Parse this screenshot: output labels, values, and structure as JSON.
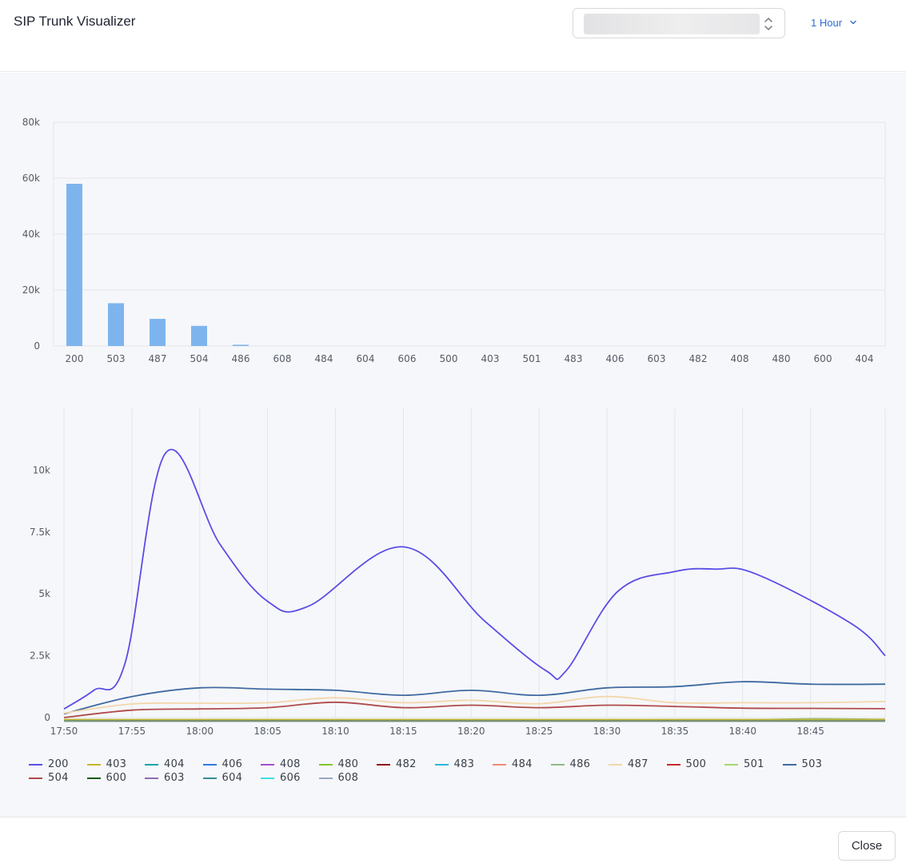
{
  "header": {
    "title": "SIP Trunk Visualizer",
    "range_label": "1 Hour"
  },
  "footer": {
    "close_label": "Close"
  },
  "chart_data": [
    {
      "type": "bar",
      "categories": [
        "200",
        "503",
        "487",
        "504",
        "486",
        "608",
        "484",
        "604",
        "606",
        "500",
        "403",
        "501",
        "483",
        "406",
        "603",
        "482",
        "408",
        "480",
        "600",
        "404"
      ],
      "values": [
        58000,
        15300,
        9700,
        7200,
        450,
        0,
        0,
        0,
        0,
        0,
        0,
        0,
        0,
        0,
        0,
        0,
        0,
        0,
        0,
        0
      ],
      "ylim": [
        0,
        80000
      ],
      "yticks": [
        0,
        20000,
        40000,
        60000,
        80000
      ],
      "ytick_labels": [
        "0",
        "20k",
        "40k",
        "60k",
        "80k"
      ],
      "bar_color": "#7eb4ee",
      "grid": true
    },
    {
      "type": "line",
      "x": [
        "17:50",
        "17:55",
        "18:00",
        "18:05",
        "18:10",
        "18:15",
        "18:20",
        "18:25",
        "18:30",
        "18:35",
        "18:40",
        "18:45"
      ],
      "xticks": [
        "17:50",
        "17:55",
        "18:00",
        "18:05",
        "18:10",
        "18:15",
        "18:20",
        "18:25",
        "18:30",
        "18:35",
        "18:40",
        "18:45"
      ],
      "ylim": [
        0,
        12500
      ],
      "yticks": [
        0,
        2500,
        5000,
        7500,
        10000
      ],
      "ytick_labels": [
        "0",
        "2.5k",
        "5k",
        "7.5k",
        "10k"
      ],
      "grid": true,
      "legend": "bottom-left",
      "series": [
        {
          "name": "200",
          "color": "#5a4de6",
          "values": [
            [
              0,
              350
            ],
            [
              2.2,
              1100
            ],
            [
              4.5,
              2200
            ],
            [
              7.5,
              10700
            ],
            [
              11.5,
              7000
            ],
            [
              15,
              4700
            ],
            [
              18,
              4500
            ],
            [
              25,
              6900
            ],
            [
              31,
              3900
            ],
            [
              35.5,
              1900
            ],
            [
              37,
              1900
            ],
            [
              40.8,
              5100
            ],
            [
              45,
              5900
            ],
            [
              48,
              6000
            ],
            [
              51,
              5800
            ],
            [
              58,
              3800
            ],
            [
              60.5,
              2500
            ]
          ]
        },
        {
          "name": "403",
          "color": "#c8b62a",
          "values": [
            [
              0,
              -80
            ],
            [
              30,
              -80
            ],
            [
              60.5,
              -80
            ]
          ]
        },
        {
          "name": "404",
          "color": "#16a3a8",
          "values": [
            [
              0,
              -90
            ],
            [
              30,
              -90
            ],
            [
              60.5,
              -90
            ]
          ]
        },
        {
          "name": "406",
          "color": "#2f7be0",
          "values": [
            [
              0,
              -95
            ],
            [
              30,
              -95
            ],
            [
              60.5,
              -95
            ]
          ]
        },
        {
          "name": "408",
          "color": "#a54fd1",
          "values": [
            [
              0,
              -100
            ],
            [
              30,
              -100
            ],
            [
              60.5,
              -100
            ]
          ]
        },
        {
          "name": "480",
          "color": "#7fc52c",
          "values": [
            [
              0,
              -105
            ],
            [
              30,
              -105
            ],
            [
              60.5,
              -105
            ]
          ]
        },
        {
          "name": "482",
          "color": "#8c1313",
          "values": [
            [
              0,
              -110
            ],
            [
              30,
              -110
            ],
            [
              60.5,
              -110
            ]
          ]
        },
        {
          "name": "483",
          "color": "#27b8dd",
          "values": [
            [
              0,
              -115
            ],
            [
              30,
              -115
            ],
            [
              60.5,
              -115
            ]
          ]
        },
        {
          "name": "484",
          "color": "#ef8b78",
          "values": [
            [
              0,
              -120
            ],
            [
              30,
              -120
            ],
            [
              60.5,
              -120
            ]
          ]
        },
        {
          "name": "486",
          "color": "#8fbc87",
          "values": [
            [
              0,
              -130
            ],
            [
              10,
              -90
            ],
            [
              20,
              -100
            ],
            [
              30,
              -110
            ],
            [
              40,
              -95
            ],
            [
              50,
              -90
            ],
            [
              55,
              -50
            ],
            [
              60.5,
              -70
            ]
          ]
        },
        {
          "name": "487",
          "color": "#f3d7ab",
          "values": [
            [
              0,
              180
            ],
            [
              5,
              550
            ],
            [
              10,
              580
            ],
            [
              15,
              600
            ],
            [
              20,
              800
            ],
            [
              25,
              600
            ],
            [
              30,
              700
            ],
            [
              35,
              560
            ],
            [
              40,
              850
            ],
            [
              45,
              600
            ],
            [
              50,
              600
            ],
            [
              55,
              600
            ],
            [
              60.5,
              650
            ]
          ]
        },
        {
          "name": "500",
          "color": "#c62a2a",
          "values": [
            [
              0,
              -125
            ],
            [
              30,
              -125
            ],
            [
              60.5,
              -125
            ]
          ]
        },
        {
          "name": "501",
          "color": "#a5d86e",
          "values": [
            [
              0,
              -128
            ],
            [
              30,
              -128
            ],
            [
              60.5,
              -128
            ]
          ]
        },
        {
          "name": "503",
          "color": "#3f6aa0",
          "values": [
            [
              0,
              150
            ],
            [
              5,
              850
            ],
            [
              10,
              1200
            ],
            [
              15,
              1150
            ],
            [
              20,
              1100
            ],
            [
              25,
              900
            ],
            [
              30,
              1100
            ],
            [
              35,
              900
            ],
            [
              40,
              1200
            ],
            [
              45,
              1250
            ],
            [
              50,
              1450
            ],
            [
              55,
              1350
            ],
            [
              60.5,
              1350
            ]
          ]
        },
        {
          "name": "504",
          "color": "#b04a4a",
          "values": [
            [
              0,
              0
            ],
            [
              5,
              300
            ],
            [
              10,
              350
            ],
            [
              15,
              400
            ],
            [
              20,
              620
            ],
            [
              25,
              400
            ],
            [
              30,
              500
            ],
            [
              35,
              400
            ],
            [
              40,
              500
            ],
            [
              45,
              450
            ],
            [
              50,
              380
            ],
            [
              55,
              370
            ],
            [
              60.5,
              360
            ]
          ]
        },
        {
          "name": "600",
          "color": "#0f5a0f",
          "values": [
            [
              0,
              -132
            ],
            [
              30,
              -132
            ],
            [
              60.5,
              -132
            ]
          ]
        },
        {
          "name": "603",
          "color": "#8d6bb0",
          "values": [
            [
              0,
              -135
            ],
            [
              30,
              -135
            ],
            [
              60.5,
              -135
            ]
          ]
        },
        {
          "name": "604",
          "color": "#3c8b9b",
          "values": [
            [
              0,
              -138
            ],
            [
              30,
              -138
            ],
            [
              60.5,
              -138
            ]
          ]
        },
        {
          "name": "606",
          "color": "#3de0e0",
          "values": [
            [
              0,
              -140
            ],
            [
              30,
              -140
            ],
            [
              60.5,
              -140
            ]
          ]
        },
        {
          "name": "608",
          "color": "#9aa8c4",
          "values": [
            [
              0,
              -142
            ],
            [
              30,
              -142
            ],
            [
              60.5,
              -142
            ]
          ]
        }
      ]
    }
  ]
}
